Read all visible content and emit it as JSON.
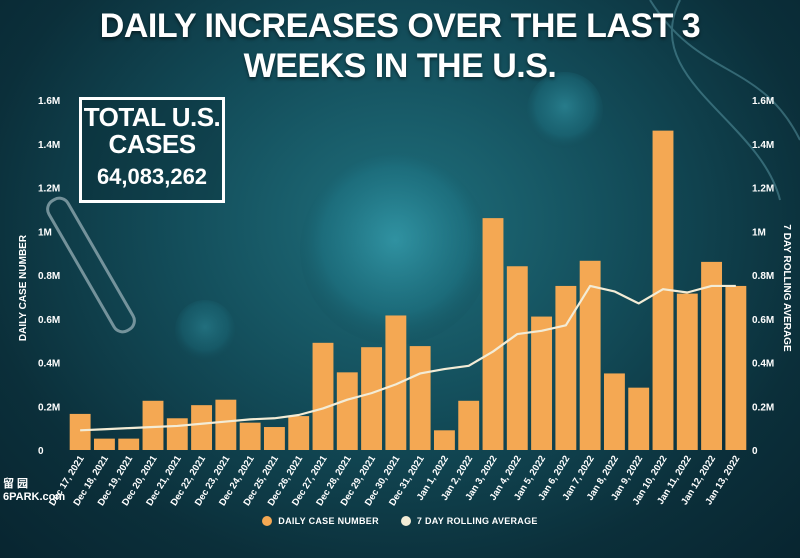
{
  "title": "DAILY INCREASES OVER THE LAST 3 WEEKS IN THE U.S.",
  "total_box": {
    "label": "TOTAL U.S. CASES",
    "value": "64,083,262"
  },
  "watermark": {
    "line1": "留 园",
    "line2": "6PARK.com"
  },
  "legend": [
    {
      "label": "DAILY CASE NUMBER",
      "color": "#f4a853"
    },
    {
      "label": "7 DAY ROLLING AVERAGE",
      "color": "#f3ecd6"
    }
  ],
  "chart_data": {
    "type": "bar",
    "title": "DAILY INCREASES OVER THE LAST 3 WEEKS IN THE U.S.",
    "ylabel": "DAILY CASE NUMBER",
    "y2label": "7 DAY ROLLING AVERAGE",
    "ylim": [
      0,
      1600000
    ],
    "yticks": [
      0,
      200000,
      400000,
      600000,
      800000,
      1000000,
      1200000,
      1400000,
      1600000
    ],
    "ytick_labels": [
      "0",
      "0.2M",
      "0.4M",
      "0.6M",
      "0.8M",
      "1M",
      "1.2M",
      "1.4M",
      "1.6M"
    ],
    "grid": false,
    "legend_position": "bottom-center",
    "categories": [
      "Dec 17, 2021",
      "Dec 18, 2021",
      "Dec 19, 2021",
      "Dec 20, 2021",
      "Dec 21, 2021",
      "Dec 22, 2021",
      "Dec 23, 2021",
      "Dec 24, 2021",
      "Dec 25, 2021",
      "Dec 26, 2021",
      "Dec 27, 2021",
      "Dec 28, 2021",
      "Dec 29, 2021",
      "Dec 30, 2021",
      "Dec 31, 2021",
      "Jan 1, 2022",
      "Jan 2, 2022",
      "Jan 3, 2022",
      "Jan 4, 2022",
      "Jan 5, 2022",
      "Jan 6, 2022",
      "Jan 7, 2022",
      "Jan 8, 2022",
      "Jan 9, 2022",
      "Jan 10, 2022",
      "Jan 11, 2022",
      "Jan 12, 2022",
      "Jan 13, 2022"
    ],
    "series": [
      {
        "name": "DAILY CASE NUMBER",
        "type": "bar",
        "color": "#f4a853",
        "values": [
          165000,
          52000,
          52000,
          225000,
          145000,
          205000,
          230000,
          125000,
          105000,
          155000,
          490000,
          355000,
          470000,
          615000,
          475000,
          90000,
          225000,
          1060000,
          840000,
          610000,
          750000,
          865000,
          350000,
          285000,
          1460000,
          715000,
          860000,
          750000
        ]
      },
      {
        "name": "7 DAY ROLLING AVERAGE",
        "type": "line",
        "color": "#f3ecd6",
        "values": [
          90000,
          95000,
          100000,
          105000,
          110000,
          120000,
          130000,
          140000,
          145000,
          160000,
          190000,
          230000,
          260000,
          300000,
          350000,
          370000,
          385000,
          450000,
          530000,
          545000,
          570000,
          750000,
          725000,
          670000,
          735000,
          720000,
          750000,
          750000
        ]
      }
    ]
  }
}
